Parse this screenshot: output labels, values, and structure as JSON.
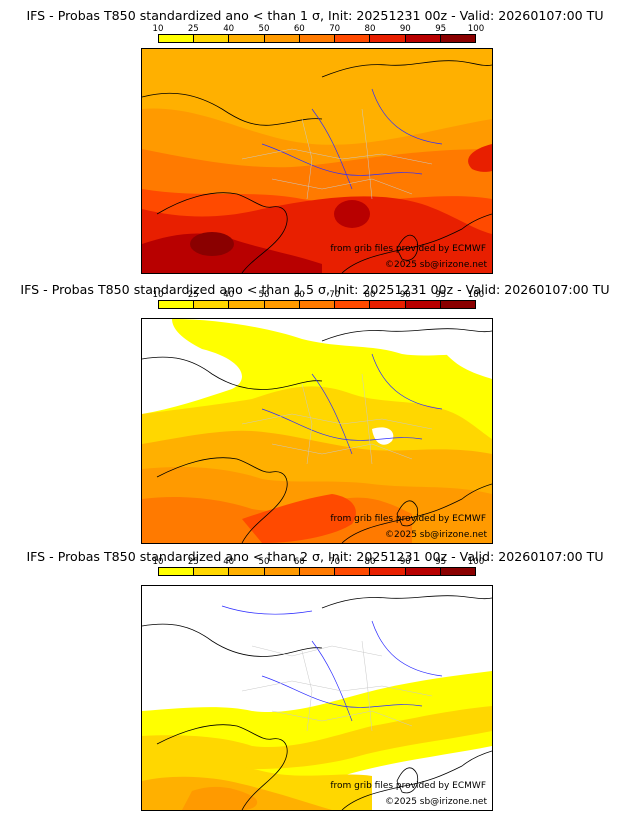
{
  "legend": {
    "ticks": [
      "10",
      "25",
      "40",
      "50",
      "60",
      "70",
      "80",
      "90",
      "95",
      "100"
    ],
    "colors": [
      "#ffff00",
      "#ffd700",
      "#ffb000",
      "#ff9a00",
      "#ff7a00",
      "#ff4a00",
      "#e81f00",
      "#b80000",
      "#8a0000",
      "#5a0000"
    ]
  },
  "panels": [
    {
      "title": "IFS - Probas T850  standardized ano < than 1 σ, Init: 20251231 00z - Valid: 20260107:00 TU",
      "source_credit": "from grib files provided by ECMWF",
      "copyright": "©2025 sb@irizone.net"
    },
    {
      "title": "IFS - Probas T850  standardized ano < than 1.5 σ, Init: 20251231 00z - Valid: 20260107:00 TU",
      "source_credit": "from grib files provided by ECMWF",
      "copyright": "©2025 sb@irizone.net"
    },
    {
      "title": "IFS - Probas T850  standardized ano < than 2 σ, Init: 20251231 00z - Valid: 20260107:00 TU",
      "source_credit": "from grib files provided by ECMWF",
      "copyright": "©2025 sb@irizone.net"
    }
  ]
}
